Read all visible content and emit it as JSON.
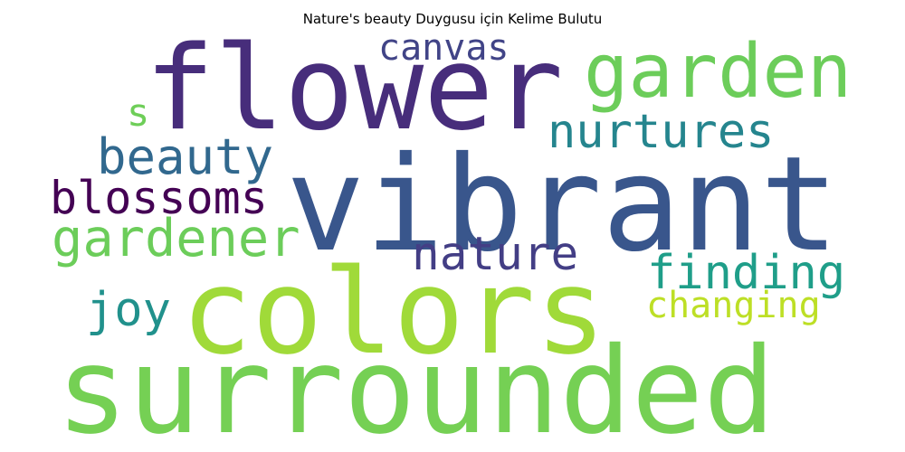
{
  "chart_data": {
    "type": "wordcloud",
    "title": "Nature's beauty Duygusu için Kelime Bulutu",
    "words": [
      {
        "text": "flower",
        "color": "#472d7b"
      },
      {
        "text": "garden",
        "color": "#6ccd5a"
      },
      {
        "text": "canvas",
        "color": "#414487"
      },
      {
        "text": "s",
        "color": "#6ece58"
      },
      {
        "text": "nurtures",
        "color": "#25858e"
      },
      {
        "text": "beauty",
        "color": "#31688e"
      },
      {
        "text": "vibrant",
        "color": "#39568c"
      },
      {
        "text": "blossoms",
        "color": "#440154"
      },
      {
        "text": "gardener",
        "color": "#6ccd5a"
      },
      {
        "text": "nature",
        "color": "#433e85"
      },
      {
        "text": "finding",
        "color": "#1f9e89"
      },
      {
        "text": "joy",
        "color": "#21918c"
      },
      {
        "text": "changing",
        "color": "#bddf26"
      },
      {
        "text": "colors",
        "color": "#a0da39"
      },
      {
        "text": "surrounded",
        "color": "#75d054"
      }
    ]
  }
}
